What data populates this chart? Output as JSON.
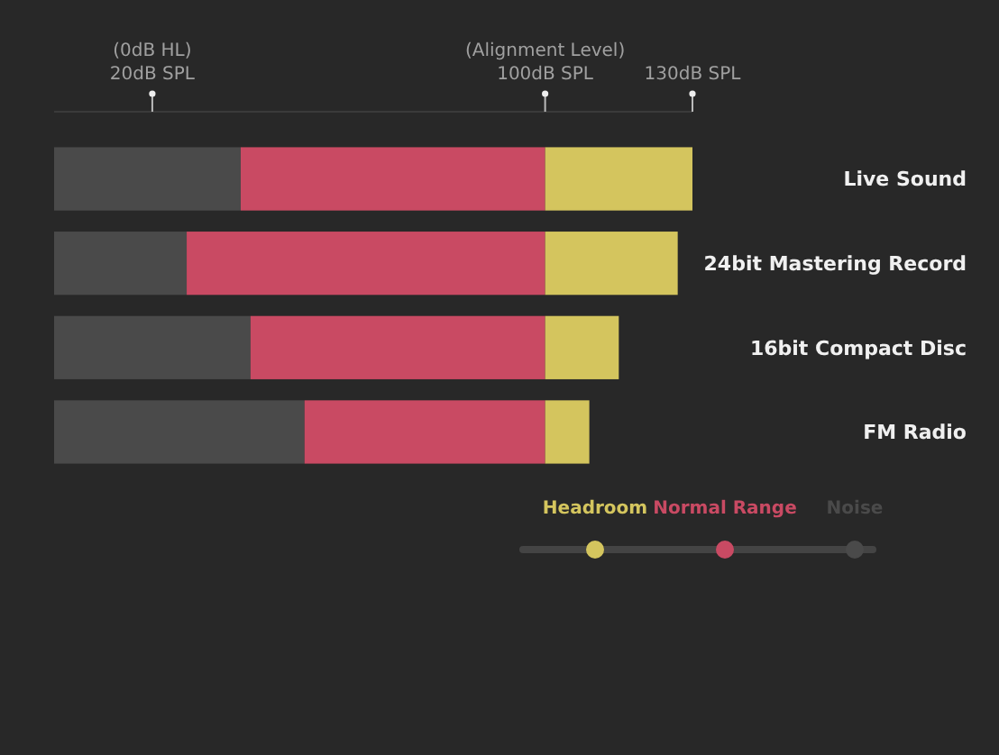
{
  "chart_data": {
    "type": "bar",
    "orientation": "horizontal",
    "stacked": true,
    "categories": [
      "Live Sound",
      "24bit Mastering Record",
      "16bit Compact Disc",
      "FM Radio"
    ],
    "series": [
      {
        "name": "Noise",
        "color": "#4a4a4a",
        "values": [
          38,
          27,
          40,
          51
        ]
      },
      {
        "name": "Normal Range",
        "color": "#c94a63",
        "values": [
          62,
          73,
          60,
          49
        ]
      },
      {
        "name": "Headroom",
        "color": "#d4c55e",
        "values": [
          30,
          27,
          15,
          9
        ]
      }
    ],
    "xlim": [
      0,
      130
    ],
    "xticks": [
      {
        "value": 20,
        "label": "20dB SPL"
      },
      {
        "value": 100,
        "label": "100dB SPL"
      },
      {
        "value": 130,
        "label": "130dB SPL"
      }
    ],
    "annotations": [
      "(0dB HL)",
      "(Alignment Level)"
    ],
    "legend": "bottom right",
    "grid": false
  }
}
